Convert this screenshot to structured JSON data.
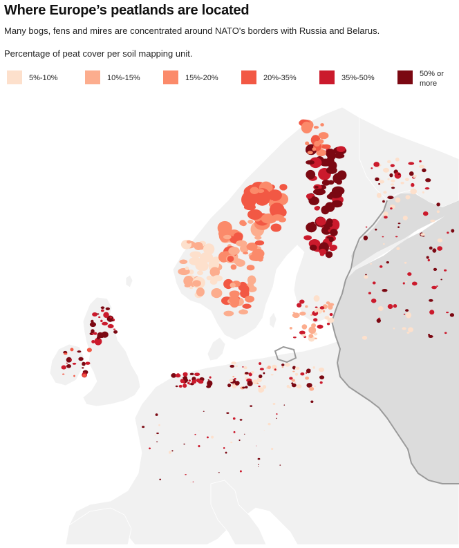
{
  "title": "Where Europe’s peatlands are located",
  "subtitle": "Many bogs, fens and mires are concentrated around NATO's borders with Russia and Belarus.",
  "legend": {
    "title": "Percentage of peat cover per soil mapping unit.",
    "items": [
      {
        "label": "5%-10%",
        "color": "#fde0cc"
      },
      {
        "label": "10%-15%",
        "color": "#fcad8e"
      },
      {
        "label": "15%-20%",
        "color": "#fb8a6a"
      },
      {
        "label": "20%-35%",
        "color": "#f25844"
      },
      {
        "label": "35%-50%",
        "color": "#cb1a2c"
      },
      {
        "label": "50% or more",
        "color": "#7b0812"
      }
    ]
  },
  "colors": {
    "land": "#f1f1f1",
    "russia_belarus": "#dcdcdc",
    "border": "#9a9a9a",
    "sea": "#ffffff"
  }
}
